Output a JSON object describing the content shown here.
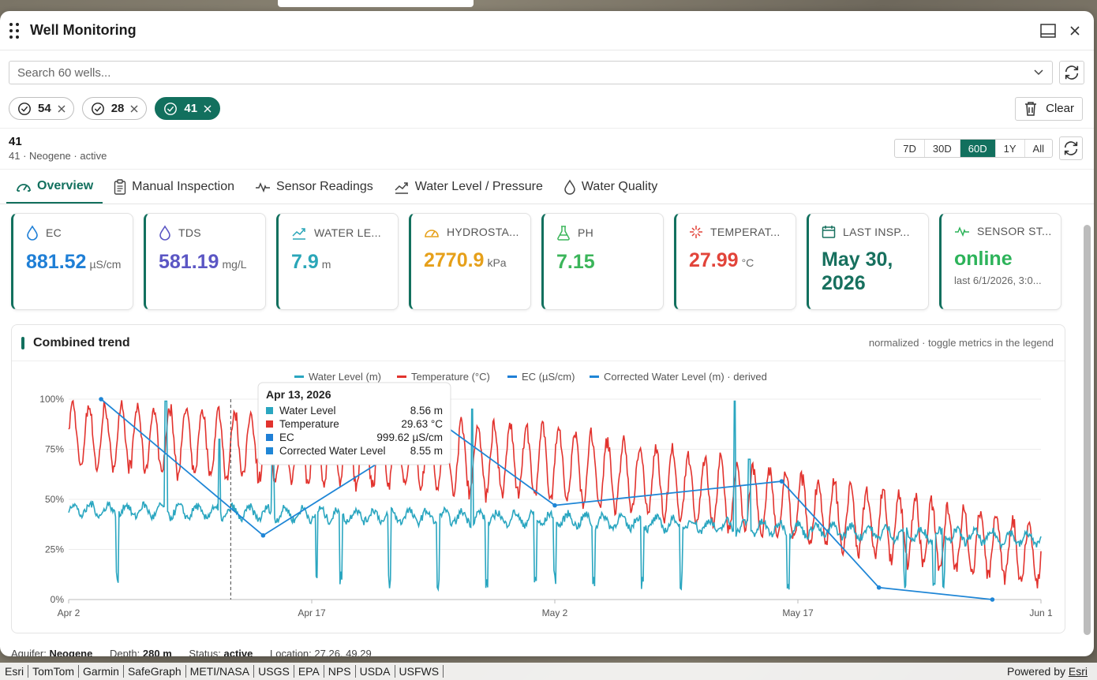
{
  "window": {
    "title": "Well Monitoring"
  },
  "search": {
    "placeholder": "Search 60 wells..."
  },
  "chips": [
    {
      "label": "54",
      "active": false
    },
    {
      "label": "28",
      "active": false
    },
    {
      "label": "41",
      "active": true
    }
  ],
  "clear_label": "Clear",
  "well": {
    "id": "41",
    "subtitle": "41 · Neogene · active"
  },
  "ranges": [
    {
      "label": "7D",
      "active": false
    },
    {
      "label": "30D",
      "active": false
    },
    {
      "label": "60D",
      "active": true
    },
    {
      "label": "1Y",
      "active": false
    },
    {
      "label": "All",
      "active": false
    }
  ],
  "tabs": [
    {
      "label": "Overview",
      "icon": "gauge-icon",
      "active": true
    },
    {
      "label": "Manual Inspection",
      "icon": "clipboard-icon",
      "active": false
    },
    {
      "label": "Sensor Readings",
      "icon": "pulse-icon",
      "active": false
    },
    {
      "label": "Water Level / Pressure",
      "icon": "trend-icon",
      "active": false
    },
    {
      "label": "Water Quality",
      "icon": "droplet-icon",
      "active": false
    }
  ],
  "cards": [
    {
      "label": "EC",
      "value": "881.52",
      "unit": "µS/cm",
      "color": "#1f7fd6",
      "icon": "droplet-icon"
    },
    {
      "label": "TDS",
      "value": "581.19",
      "unit": "mg/L",
      "color": "#5b56c4",
      "icon": "droplet-icon"
    },
    {
      "label": "WATER LE...",
      "value": "7.9",
      "unit": "m",
      "color": "#2aa6b8",
      "icon": "water-level-icon"
    },
    {
      "label": "HYDROSTA...",
      "value": "2770.9",
      "unit": "kPa",
      "color": "#e6a01a",
      "icon": "gauge-icon"
    },
    {
      "label": "PH",
      "value": "7.15",
      "unit": "",
      "color": "#3bb55a",
      "icon": "flask-icon"
    },
    {
      "label": "TEMPERAT...",
      "value": "27.99",
      "unit": "°C",
      "color": "#e2443a",
      "icon": "sparkle-icon"
    },
    {
      "label": "LAST INSP...",
      "value": "May 30, 2026",
      "unit": "",
      "color": "#17705e",
      "icon": "calendar-icon"
    },
    {
      "label": "SENSOR ST...",
      "value": "online",
      "unit": "",
      "sub": "last 6/1/2026, 3:0...",
      "color": "#2db35a",
      "icon": "pulse-icon"
    }
  ],
  "chart": {
    "title": "Combined trend",
    "note": "normalized · toggle metrics in the legend"
  },
  "chart_data": {
    "type": "line",
    "title": "Combined trend",
    "y_unit": "%",
    "ylim": [
      0,
      100
    ],
    "y_ticks": [
      "0%",
      "25%",
      "50%",
      "75%",
      "100%"
    ],
    "x_ticks": [
      "Apr 2",
      "Apr 17",
      "May 2",
      "May 17",
      "Jun 1"
    ],
    "x_range": [
      "2026-04-02",
      "2026-06-01"
    ],
    "legend": [
      {
        "name": "Water Level (m)",
        "color": "#2aa6c0"
      },
      {
        "name": "Temperature (°C)",
        "color": "#e2332e"
      },
      {
        "name": "EC (µS/cm)",
        "color": "#1f7fd6"
      },
      {
        "name": "Corrected Water Level (m) · derived",
        "color": "#1f86d6"
      }
    ],
    "series": [
      {
        "name": "Temperature (°C)",
        "color": "#e2332e",
        "approx_band": [
          [
            "2026-04-02",
            65,
            100
          ],
          [
            "2026-05-02",
            48,
            88
          ],
          [
            "2026-06-01",
            5,
            40
          ]
        ]
      },
      {
        "name": "Water Level (m)",
        "color": "#2aa6c0",
        "approx_baseline": [
          [
            "2026-04-02",
            45
          ],
          [
            "2026-05-02",
            40
          ],
          [
            "2026-06-01",
            30
          ]
        ]
      },
      {
        "name": "Corrected Water Level (m) · derived",
        "color": "#1f86d6",
        "x": [
          "2026-04-04",
          "2026-04-14",
          "2026-04-25",
          "2026-05-02",
          "2026-05-16",
          "2026-05-22",
          "2026-05-29"
        ],
        "values": [
          100,
          32,
          88,
          47,
          59,
          6,
          0
        ]
      }
    ],
    "tooltip": {
      "date": "Apr 13, 2026",
      "rows": [
        {
          "name": "Water Level",
          "value": "8.56 m",
          "color": "#2aa6c0"
        },
        {
          "name": "Temperature",
          "value": "29.63 °C",
          "color": "#e2332e"
        },
        {
          "name": "EC",
          "value": "999.62 µS/cm",
          "color": "#1f7fd6"
        },
        {
          "name": "Corrected Water Level",
          "value": "8.55 m",
          "color": "#1f86d6"
        }
      ]
    }
  },
  "footer": {
    "aquifer_label": "Aquifer:",
    "aquifer": "Neogene",
    "depth_label": "Depth:",
    "depth": "280 m",
    "status_label": "Status:",
    "status": "active",
    "location_label": "Location:",
    "location": "27.26, 49.29"
  },
  "attribution": [
    "Esri",
    "TomTom",
    "Garmin",
    "SafeGraph",
    "METI/NASA",
    "USGS",
    "EPA",
    "NPS",
    "USDA",
    "USFWS"
  ],
  "powered": {
    "text": "Powered by",
    "link": "Esri"
  }
}
